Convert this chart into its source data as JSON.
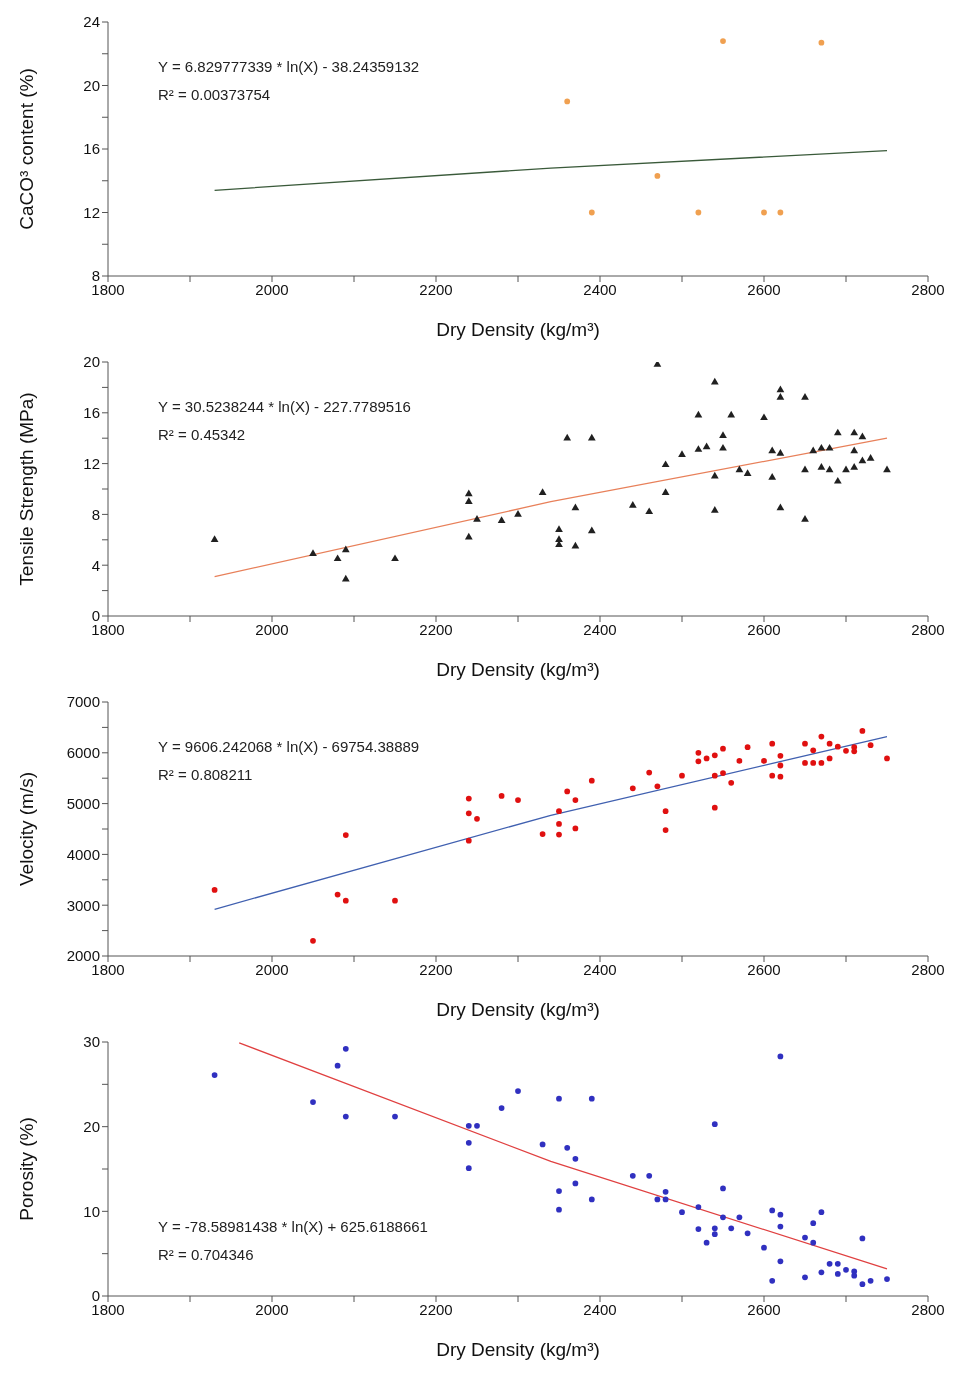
{
  "chart_data": [
    {
      "type": "scatter",
      "xlabel": "Dry Density (kg/m³)",
      "ylabel": "CaCO³ content (%)",
      "marker": "circle",
      "xlim": [
        1800,
        2800
      ],
      "xticks": [
        1800,
        {
          "value": 1900,
          "label": null
        },
        2000,
        {
          "value": 2100,
          "label": null
        },
        2200,
        {
          "value": 2300,
          "label": null
        },
        2400,
        {
          "value": 2500,
          "label": null
        },
        2600,
        {
          "value": 2700,
          "label": null
        },
        2800
      ],
      "ylim": [
        8,
        24
      ],
      "yticks": [
        8,
        {
          "value": 10,
          "label": null
        },
        12,
        {
          "value": 14,
          "label": null
        },
        16,
        {
          "value": 18,
          "label": null
        },
        20,
        {
          "value": 22,
          "label": null
        },
        24
      ],
      "annotations": [
        "Y = 6.829777339 * ln(X) - 38.24359132",
        "R² = 0.00373754"
      ],
      "series": [
        {
          "color": "#f0a050",
          "x": [
            2360,
            2390,
            2470,
            2520,
            2550,
            2600,
            2620,
            2670
          ],
          "values": [
            19,
            12,
            14.3,
            12,
            22.8,
            12,
            12,
            22.7
          ]
        },
        {
          "type": "line",
          "marker": "none",
          "color": "#3a5a3a",
          "x": [
            1930,
            2340,
            2750
          ],
          "values": [
            13.4,
            14.8,
            15.9
          ]
        }
      ]
    },
    {
      "type": "scatter",
      "xlabel": "Dry Density (kg/m³)",
      "ylabel": "Tensile Strength (MPa)",
      "marker": "triangle",
      "xlim": [
        1800,
        2800
      ],
      "xticks": [
        1800,
        {
          "value": 1900,
          "label": null
        },
        2000,
        {
          "value": 2100,
          "label": null
        },
        2200,
        {
          "value": 2300,
          "label": null
        },
        2400,
        {
          "value": 2500,
          "label": null
        },
        2600,
        {
          "value": 2700,
          "label": null
        },
        2800
      ],
      "ylim": [
        0,
        20
      ],
      "yticks": [
        0,
        {
          "value": 2,
          "label": null
        },
        4,
        {
          "value": 6,
          "label": null
        },
        8,
        {
          "value": 10,
          "label": null
        },
        12,
        {
          "value": 14,
          "label": null
        },
        16,
        {
          "value": 18,
          "label": null
        },
        20
      ],
      "annotations": [
        "Y = 30.5238244 * ln(X) - 227.7789516",
        "R² = 0.45342"
      ],
      "series": [
        {
          "color": "#202020",
          "x": [
            1930,
            2050,
            2080,
            2090,
            2090,
            2150,
            2240,
            2240,
            2240,
            2250,
            2280,
            2300,
            2330,
            2350,
            2350,
            2350,
            2360,
            2370,
            2370,
            2390,
            2390,
            2440,
            2460,
            2470,
            2480,
            2480,
            2500,
            2520,
            2520,
            2530,
            2540,
            2540,
            2540,
            2550,
            2550,
            2560,
            2570,
            2580,
            2600,
            2610,
            2610,
            2620,
            2620,
            2620,
            2620,
            2650,
            2650,
            2650,
            2660,
            2670,
            2670,
            2680,
            2680,
            2690,
            2690,
            2700,
            2710,
            2710,
            2710,
            2720,
            2720,
            2730,
            2750
          ],
          "values": [
            6,
            4.9,
            4.5,
            5.2,
            2.9,
            4.5,
            9.6,
            9,
            6.2,
            7.6,
            7.5,
            8,
            9.7,
            6.8,
            6,
            5.6,
            14,
            8.5,
            5.5,
            14,
            6.7,
            8.7,
            8.2,
            19.8,
            11.9,
            9.7,
            12.7,
            13.1,
            15.8,
            13.3,
            18.4,
            11,
            8.3,
            14.2,
            13.2,
            15.8,
            11.5,
            11.2,
            15.6,
            13,
            10.9,
            17.8,
            17.2,
            12.8,
            8.5,
            17.2,
            11.5,
            7.6,
            13,
            13.2,
            11.7,
            13.2,
            11.5,
            14.4,
            10.6,
            11.5,
            14.4,
            11.7,
            13,
            14.1,
            12.2,
            12.4,
            11.5
          ]
        },
        {
          "type": "line",
          "marker": "none",
          "color": "#e8805a",
          "x": [
            1930,
            2340,
            2750
          ],
          "values": [
            3.1,
            9.0,
            14.0
          ]
        }
      ]
    },
    {
      "type": "scatter",
      "xlabel": "Dry Density (kg/m³)",
      "ylabel": "Velocity (m/s)",
      "marker": "circle",
      "xlim": [
        1800,
        2800
      ],
      "xticks": [
        1800,
        {
          "value": 1900,
          "label": null
        },
        2000,
        {
          "value": 2100,
          "label": null
        },
        2200,
        {
          "value": 2300,
          "label": null
        },
        2400,
        {
          "value": 2500,
          "label": null
        },
        2600,
        {
          "value": 2700,
          "label": null
        },
        2800
      ],
      "ylim": [
        2000,
        7000
      ],
      "yticks": [
        2000,
        {
          "value": 2500,
          "label": null
        },
        3000,
        {
          "value": 3500,
          "label": null
        },
        4000,
        {
          "value": 4500,
          "label": null
        },
        5000,
        {
          "value": 5500,
          "label": null
        },
        6000,
        {
          "value": 6500,
          "label": null
        },
        7000
      ],
      "annotations": [
        "Y = 9606.242068 * ln(X) - 69754.38889",
        "R² = 0.808211"
      ],
      "series": [
        {
          "color": "#e01010",
          "x": [
            1930,
            2050,
            2080,
            2090,
            2090,
            2150,
            2240,
            2240,
            2240,
            2250,
            2280,
            2300,
            2330,
            2350,
            2350,
            2350,
            2360,
            2370,
            2370,
            2390,
            2440,
            2460,
            2470,
            2480,
            2480,
            2500,
            2520,
            2520,
            2530,
            2540,
            2540,
            2540,
            2550,
            2550,
            2560,
            2570,
            2580,
            2600,
            2610,
            2610,
            2620,
            2620,
            2620,
            2650,
            2650,
            2660,
            2660,
            2670,
            2670,
            2680,
            2680,
            2690,
            2700,
            2710,
            2710,
            2720,
            2730,
            2750
          ],
          "values": [
            3300,
            2300,
            3210,
            3090,
            4380,
            3090,
            5100,
            4810,
            4270,
            4700,
            5150,
            5070,
            4400,
            4850,
            4600,
            4390,
            5240,
            5070,
            4510,
            5450,
            5300,
            5610,
            5340,
            4850,
            4480,
            5550,
            6000,
            5830,
            5890,
            5950,
            5550,
            4920,
            6080,
            5600,
            5410,
            5840,
            6110,
            5840,
            6180,
            5550,
            5940,
            5750,
            5530,
            6180,
            5800,
            6050,
            5800,
            6320,
            5800,
            5890,
            6180,
            6120,
            6040,
            6110,
            6030,
            6430,
            6150,
            5890
          ]
        },
        {
          "type": "line",
          "marker": "none",
          "color": "#4060b0",
          "x": [
            1930,
            2340,
            2750
          ],
          "values": [
            2920,
            4770,
            6320
          ]
        }
      ]
    },
    {
      "type": "scatter",
      "xlabel": "Dry Density (kg/m³)",
      "ylabel": "Porosity (%)",
      "marker": "circle",
      "xlim": [
        1800,
        2800
      ],
      "xticks": [
        1800,
        {
          "value": 1900,
          "label": null
        },
        2000,
        {
          "value": 2100,
          "label": null
        },
        2200,
        {
          "value": 2300,
          "label": null
        },
        2400,
        {
          "value": 2500,
          "label": null
        },
        2600,
        {
          "value": 2700,
          "label": null
        },
        2800
      ],
      "ylim": [
        0,
        30
      ],
      "yticks": [
        0,
        {
          "value": 5,
          "label": null
        },
        10,
        {
          "value": 15,
          "label": null
        },
        20,
        {
          "value": 25,
          "label": null
        },
        30
      ],
      "annotations": [
        "Y = -78.58981438 * ln(X) + 625.6188661",
        "R² = 0.704346"
      ],
      "series": [
        {
          "color": "#3030c0",
          "x": [
            1930,
            2050,
            2080,
            2090,
            2090,
            2150,
            2240,
            2240,
            2240,
            2250,
            2280,
            2300,
            2330,
            2350,
            2350,
            2350,
            2360,
            2370,
            2370,
            2390,
            2390,
            2440,
            2460,
            2470,
            2480,
            2480,
            2500,
            2520,
            2520,
            2530,
            2540,
            2540,
            2540,
            2550,
            2550,
            2560,
            2570,
            2580,
            2600,
            2610,
            2610,
            2620,
            2620,
            2620,
            2620,
            2650,
            2650,
            2660,
            2660,
            2670,
            2670,
            2680,
            2690,
            2690,
            2700,
            2710,
            2710,
            2720,
            2720,
            2730,
            2750
          ],
          "values": [
            26.1,
            22.9,
            27.2,
            29.2,
            21.2,
            21.2,
            18.1,
            15.1,
            20.1,
            20.1,
            22.2,
            24.2,
            17.9,
            23.3,
            12.4,
            10.2,
            17.5,
            16.2,
            13.3,
            23.3,
            11.4,
            14.2,
            14.2,
            11.4,
            12.3,
            11.4,
            9.9,
            10.5,
            7.9,
            6.3,
            20.3,
            8,
            7.3,
            12.7,
            9.3,
            8,
            9.3,
            7.4,
            5.7,
            10.1,
            1.8,
            28.3,
            9.6,
            8.2,
            4.1,
            6.9,
            2.2,
            8.6,
            6.3,
            9.9,
            2.8,
            3.8,
            3.8,
            2.6,
            3.1,
            2.9,
            2.4,
            6.8,
            1.4,
            1.8,
            2
          ]
        },
        {
          "type": "line",
          "marker": "none",
          "color": "#e04040",
          "x": [
            1960,
            2340,
            2750
          ],
          "values": [
            29.9,
            15.9,
            3.2
          ]
        }
      ]
    }
  ]
}
